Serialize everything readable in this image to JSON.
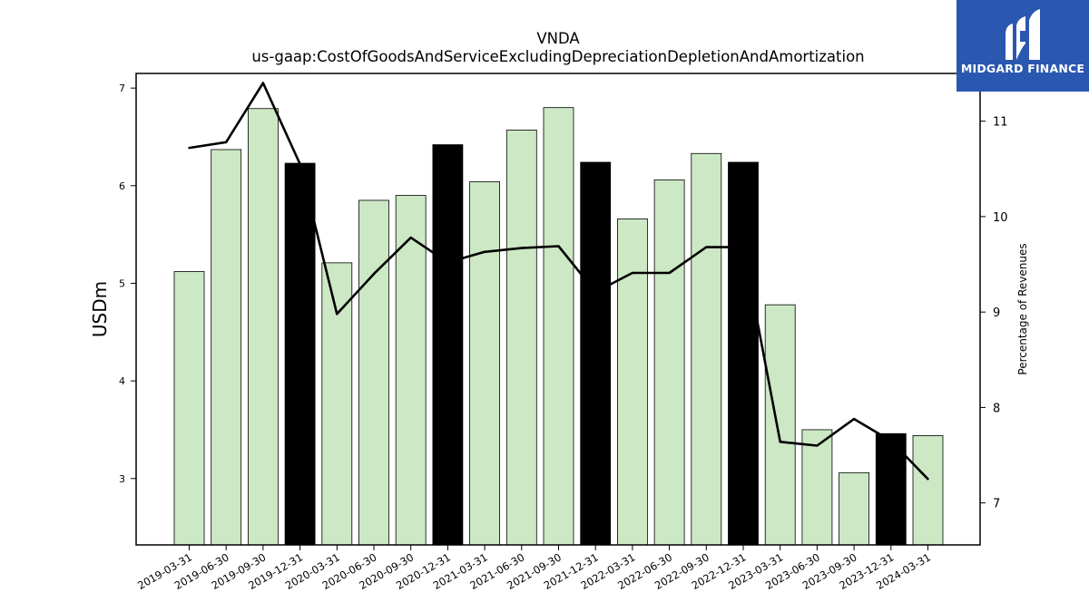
{
  "chart_data": {
    "type": "bar",
    "title": "VNDA",
    "subtitle": "us-gaap:CostOfGoodsAndServiceExcludingDepreciationDepletionAndAmortization",
    "ylabel": "USDm",
    "y2label": "Percentage of Revenues",
    "categories": [
      "2019-03-31",
      "2019-06-30",
      "2019-09-30",
      "2019-12-31",
      "2020-03-31",
      "2020-06-30",
      "2020-09-30",
      "2020-12-31",
      "2021-03-31",
      "2021-06-30",
      "2021-09-30",
      "2021-12-31",
      "2022-03-31",
      "2022-06-30",
      "2022-09-30",
      "2022-12-31",
      "2023-03-31",
      "2023-06-30",
      "2023-09-30",
      "2023-12-31",
      "2024-03-31"
    ],
    "series": [
      {
        "type": "bar",
        "axis": "left",
        "values": [
          5.12,
          6.37,
          6.79,
          6.23,
          5.21,
          5.85,
          5.9,
          6.42,
          6.04,
          6.57,
          6.8,
          6.24,
          5.66,
          6.06,
          6.33,
          6.24,
          4.78,
          3.5,
          3.06,
          3.46,
          3.44
        ]
      },
      {
        "type": "line",
        "axis": "right",
        "values": [
          10.72,
          10.78,
          11.4,
          10.55,
          8.98,
          9.4,
          9.78,
          9.52,
          9.63,
          9.67,
          9.69,
          9.21,
          9.41,
          9.41,
          9.68,
          9.68,
          7.64,
          7.6,
          7.88,
          7.65,
          7.25
        ]
      }
    ],
    "highlight_categories": [
      "2019-12-31",
      "2020-12-31",
      "2021-12-31",
      "2022-12-31",
      "2023-12-31"
    ],
    "y_ticks": [
      3,
      4,
      5,
      6,
      7
    ],
    "y2_ticks": [
      7,
      8,
      9,
      10,
      11
    ],
    "ylim": [
      2.32,
      7.15
    ],
    "y2lim": [
      6.56,
      11.5
    ],
    "bar_color": "#cce8c5",
    "highlight_color": "#000000",
    "line_color": "#000000"
  },
  "logo": {
    "text": "MIDGARD FINANCE",
    "background": "#2a57b0"
  }
}
